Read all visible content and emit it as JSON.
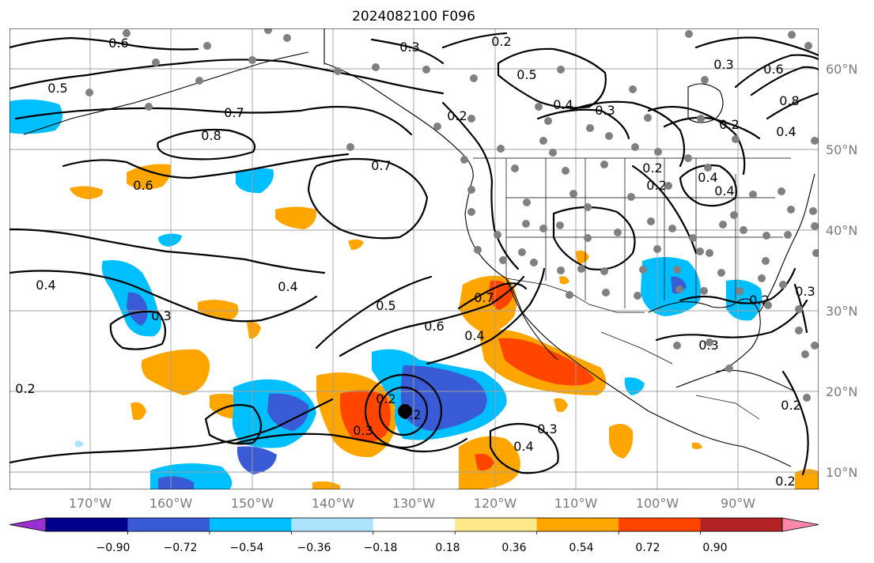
{
  "title": "2024082100 F096",
  "longitude_labels": [
    "170°W",
    "160°W",
    "150°W",
    "140°W",
    "130°W",
    "120°W",
    "110°W",
    "100°W",
    "90°W"
  ],
  "latitude_labels": [
    "60°N",
    "50°N",
    "40°N",
    "30°N",
    "20°N",
    "10°N"
  ],
  "colorbar": {
    "colors": [
      "#9b30d0",
      "#00008b",
      "#3a5bd6",
      "#00bfff",
      "#aee3ff",
      "#ffffff",
      "#fde98a",
      "#ffa500",
      "#ff4500",
      "#b22222",
      "#ff88aa"
    ],
    "tick_labels": [
      "−0.90",
      "−0.72",
      "−0.54",
      "−0.36",
      "−0.18",
      "0.18",
      "0.36",
      "0.54",
      "0.72",
      "0.90"
    ]
  },
  "contour_labels": [
    "0.6",
    "0.5",
    "0.7",
    "0.8",
    "0.6",
    "0.7",
    "0.4",
    "0.4",
    "0.3",
    "0.5",
    "0.6",
    "0.7",
    "0.4",
    "0.3",
    "0.2",
    "0.2",
    "0.3",
    "0.2",
    "0.5",
    "0.4",
    "0.3",
    "0.2",
    "0.3",
    "0.6",
    "0.8",
    "0.2",
    "0.4",
    "0.2",
    "0.4",
    "0.2",
    "0.3",
    "0.3",
    "0.2",
    "0.2",
    "0.3",
    "0.4",
    "0.2",
    "0.2",
    "0.4"
  ],
  "colors": {
    "grid": "#a0a0a0",
    "station": "#808080",
    "contour": "#000000",
    "axis_label": "#7a7a7a"
  }
}
